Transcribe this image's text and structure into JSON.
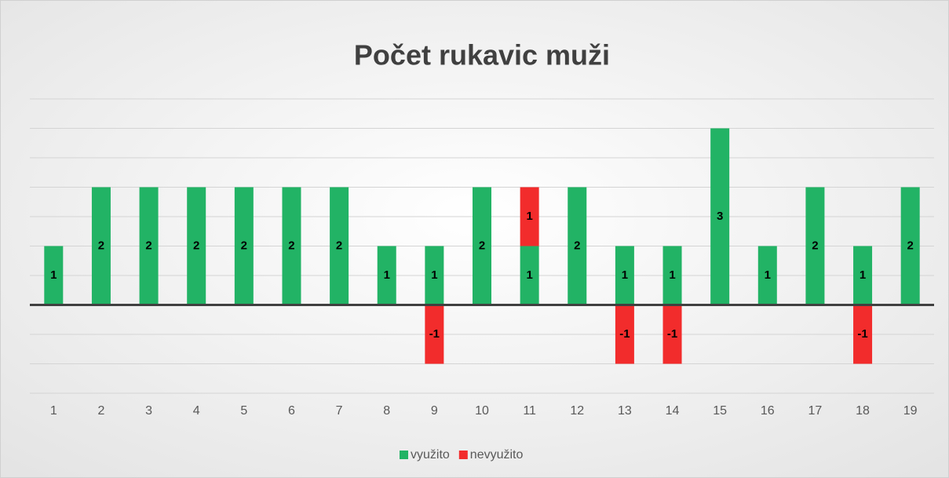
{
  "chart_data": {
    "type": "bar",
    "stacked": true,
    "title": "Počet rukavic muži",
    "categories": [
      "1",
      "2",
      "3",
      "4",
      "5",
      "6",
      "7",
      "8",
      "9",
      "10",
      "11",
      "12",
      "13",
      "14",
      "15",
      "16",
      "17",
      "18",
      "19"
    ],
    "series": [
      {
        "name": "využito",
        "color": "#22b365",
        "values": [
          1,
          2,
          2,
          2,
          2,
          2,
          2,
          1,
          1,
          2,
          1,
          2,
          1,
          1,
          3,
          1,
          2,
          1,
          2
        ]
      },
      {
        "name": "nevyužito",
        "color": "#f22c2c",
        "values": [
          null,
          null,
          null,
          null,
          null,
          null,
          null,
          null,
          -1,
          null,
          1,
          null,
          -1,
          -1,
          null,
          null,
          null,
          -1,
          null
        ]
      }
    ],
    "ylim": [
      -1.5,
      3.5
    ],
    "yticks": [
      -1.5,
      -1,
      -0.5,
      0,
      0.5,
      1,
      1.5,
      2,
      2.5,
      3,
      3.5
    ],
    "grid": true,
    "data_labels": true,
    "legend": "bottom"
  }
}
